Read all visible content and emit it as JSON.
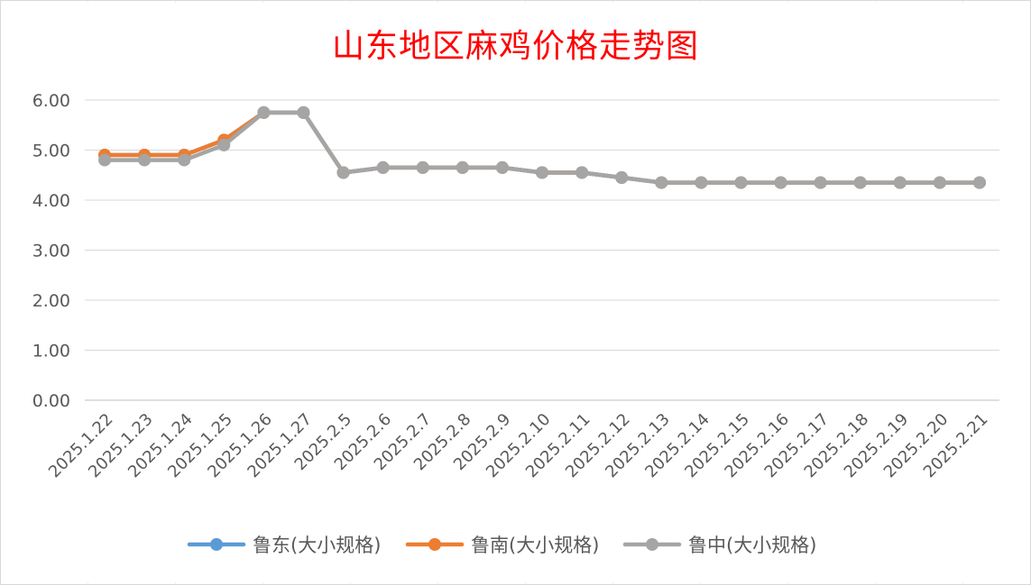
{
  "chart_data": {
    "type": "line",
    "title": "山东地区麻鸡价格走势图",
    "xlabel": "",
    "ylabel": "",
    "ylim": [
      0,
      6
    ],
    "yticks": [
      "0.00",
      "1.00",
      "2.00",
      "3.00",
      "4.00",
      "5.00",
      "6.00"
    ],
    "grid": true,
    "legend_position": "bottom",
    "categories": [
      "2025.1.22",
      "2025.1.23",
      "2025.1.24",
      "2025.1.25",
      "2025.1.26",
      "2025.1.27",
      "2025.2.5",
      "2025.2.6",
      "2025.2.7",
      "2025.2.8",
      "2025.2.9",
      "2025.2.10",
      "2025.2.11",
      "2025.2.12",
      "2025.2.13",
      "2025.2.14",
      "2025.2.15",
      "2025.2.16",
      "2025.2.17",
      "2025.2.18",
      "2025.2.19",
      "2025.2.20",
      "2025.2.21"
    ],
    "series": [
      {
        "name": "鲁东(大小规格)",
        "color": "#5b9bd5",
        "values": [
          4.9,
          4.9,
          4.9,
          5.2,
          5.75,
          5.75,
          4.55,
          4.65,
          4.65,
          4.65,
          4.65,
          4.55,
          4.55,
          4.45,
          4.35,
          4.35,
          4.35,
          4.35,
          4.35,
          4.35,
          4.35,
          4.35,
          4.35
        ]
      },
      {
        "name": "鲁南(大小规格)",
        "color": "#ed7d31",
        "values": [
          4.9,
          4.9,
          4.9,
          5.2,
          5.75,
          5.75,
          4.55,
          4.65,
          4.65,
          4.65,
          4.65,
          4.55,
          4.55,
          4.45,
          4.35,
          4.35,
          4.35,
          4.35,
          4.35,
          4.35,
          4.35,
          4.35,
          4.35
        ]
      },
      {
        "name": "鲁中(大小规格)",
        "color": "#a5a5a5",
        "values": [
          4.8,
          4.8,
          4.8,
          5.1,
          5.75,
          5.75,
          4.55,
          4.65,
          4.65,
          4.65,
          4.65,
          4.55,
          4.55,
          4.45,
          4.35,
          4.35,
          4.35,
          4.35,
          4.35,
          4.35,
          4.35,
          4.35,
          4.35
        ]
      }
    ]
  }
}
